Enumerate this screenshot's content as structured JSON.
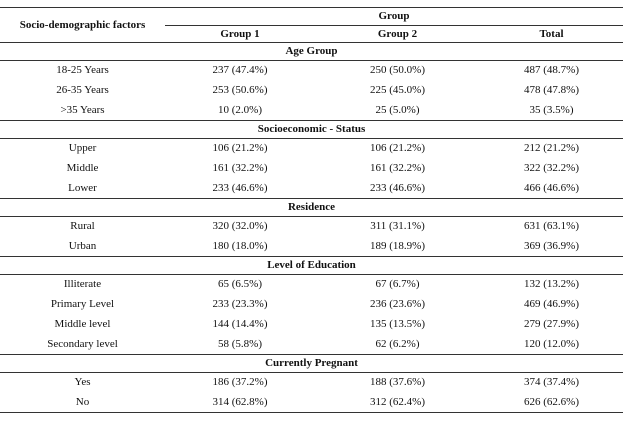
{
  "header": {
    "factor": "Socio-demographic factors",
    "group": "Group",
    "columns": [
      "Group 1",
      "Group 2",
      "Total"
    ]
  },
  "sections": [
    {
      "title": "Age Group",
      "rows": [
        [
          "18-25 Years",
          "237 (47.4%)",
          "250 (50.0%)",
          "487 (48.7%)"
        ],
        [
          "26-35 Years",
          "253 (50.6%)",
          "225 (45.0%)",
          "478 (47.8%)"
        ],
        [
          ">35 Years",
          "10 (2.0%)",
          "25 (5.0%)",
          "35 (3.5%)"
        ]
      ]
    },
    {
      "title": "Socioeconomic - Status",
      "rows": [
        [
          "Upper",
          "106 (21.2%)",
          "106 (21.2%)",
          "212 (21.2%)"
        ],
        [
          "Middle",
          "161 (32.2%)",
          "161 (32.2%)",
          "322 (32.2%)"
        ],
        [
          "Lower",
          "233 (46.6%)",
          "233 (46.6%)",
          "466 (46.6%)"
        ]
      ]
    },
    {
      "title": "Residence",
      "rows": [
        [
          "Rural",
          "320 (32.0%)",
          "311 (31.1%)",
          "631 (63.1%)"
        ],
        [
          "Urban",
          "180 (18.0%)",
          "189 (18.9%)",
          "369 (36.9%)"
        ]
      ]
    },
    {
      "title": "Level of Education",
      "rows": [
        [
          "Illiterate",
          "65 (6.5%)",
          "67 (6.7%)",
          "132 (13.2%)"
        ],
        [
          "Primary Level",
          "233 (23.3%)",
          "236 (23.6%)",
          "469 (46.9%)"
        ],
        [
          "Middle level",
          "144 (14.4%)",
          "135 (13.5%)",
          "279 (27.9%)"
        ],
        [
          "Secondary level",
          "58 (5.8%)",
          "62 (6.2%)",
          "120 (12.0%)"
        ]
      ]
    },
    {
      "title": "Currently Pregnant",
      "rows": [
        [
          "Yes",
          "186 (37.2%)",
          "188 (37.6%)",
          "374 (37.4%)"
        ],
        [
          "No",
          "314 (62.8%)",
          "312 (62.4%)",
          "626 (62.6%)"
        ]
      ]
    }
  ]
}
